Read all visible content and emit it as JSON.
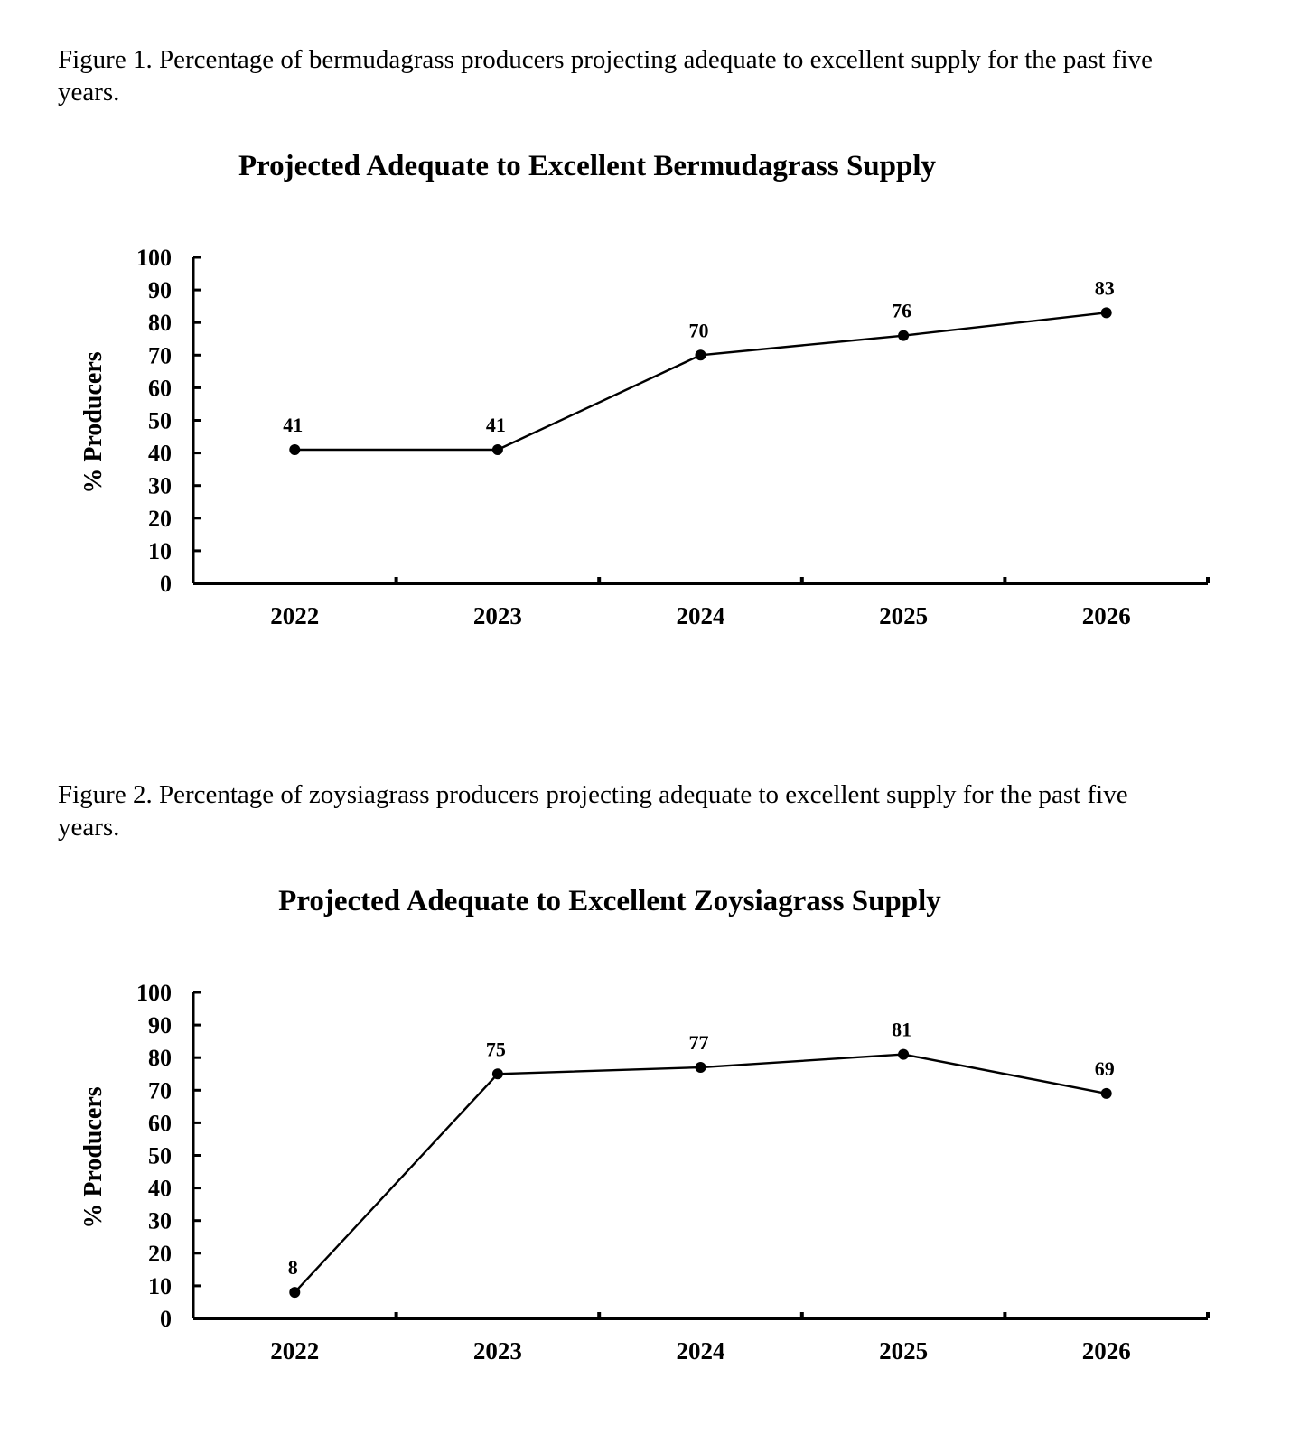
{
  "figures": [
    {
      "caption": "Figure 1.  Percentage of bermudagrass producers projecting adequate to excellent supply for the past five years."
    },
    {
      "caption": "Figure 2.  Percentage of zoysiagrass producers projecting adequate to excellent supply for the past five years."
    }
  ],
  "chart_data": [
    {
      "type": "line",
      "title": "Projected Adequate to Excellent Bermudagrass Supply",
      "xlabel": "",
      "ylabel": "% Producers",
      "categories": [
        "2022",
        "2023",
        "2024",
        "2025",
        "2026"
      ],
      "series": [
        {
          "values": [
            41,
            41,
            70,
            76,
            83
          ]
        }
      ],
      "ylim": [
        0,
        100
      ],
      "yticks": [
        0,
        10,
        20,
        30,
        40,
        50,
        60,
        70,
        80,
        90,
        100
      ],
      "data_labels": true,
      "grid": false,
      "legend": "none",
      "color": "#000000"
    },
    {
      "type": "line",
      "title": "Projected Adequate to Excellent Zoysiagrass Supply",
      "xlabel": "",
      "ylabel": "% Producers",
      "categories": [
        "2022",
        "2023",
        "2024",
        "2025",
        "2026"
      ],
      "series": [
        {
          "values": [
            8,
            75,
            77,
            81,
            69
          ]
        }
      ],
      "ylim": [
        0,
        100
      ],
      "yticks": [
        0,
        10,
        20,
        30,
        40,
        50,
        60,
        70,
        80,
        90,
        100
      ],
      "data_labels": true,
      "grid": false,
      "legend": "none",
      "color": "#000000"
    }
  ]
}
